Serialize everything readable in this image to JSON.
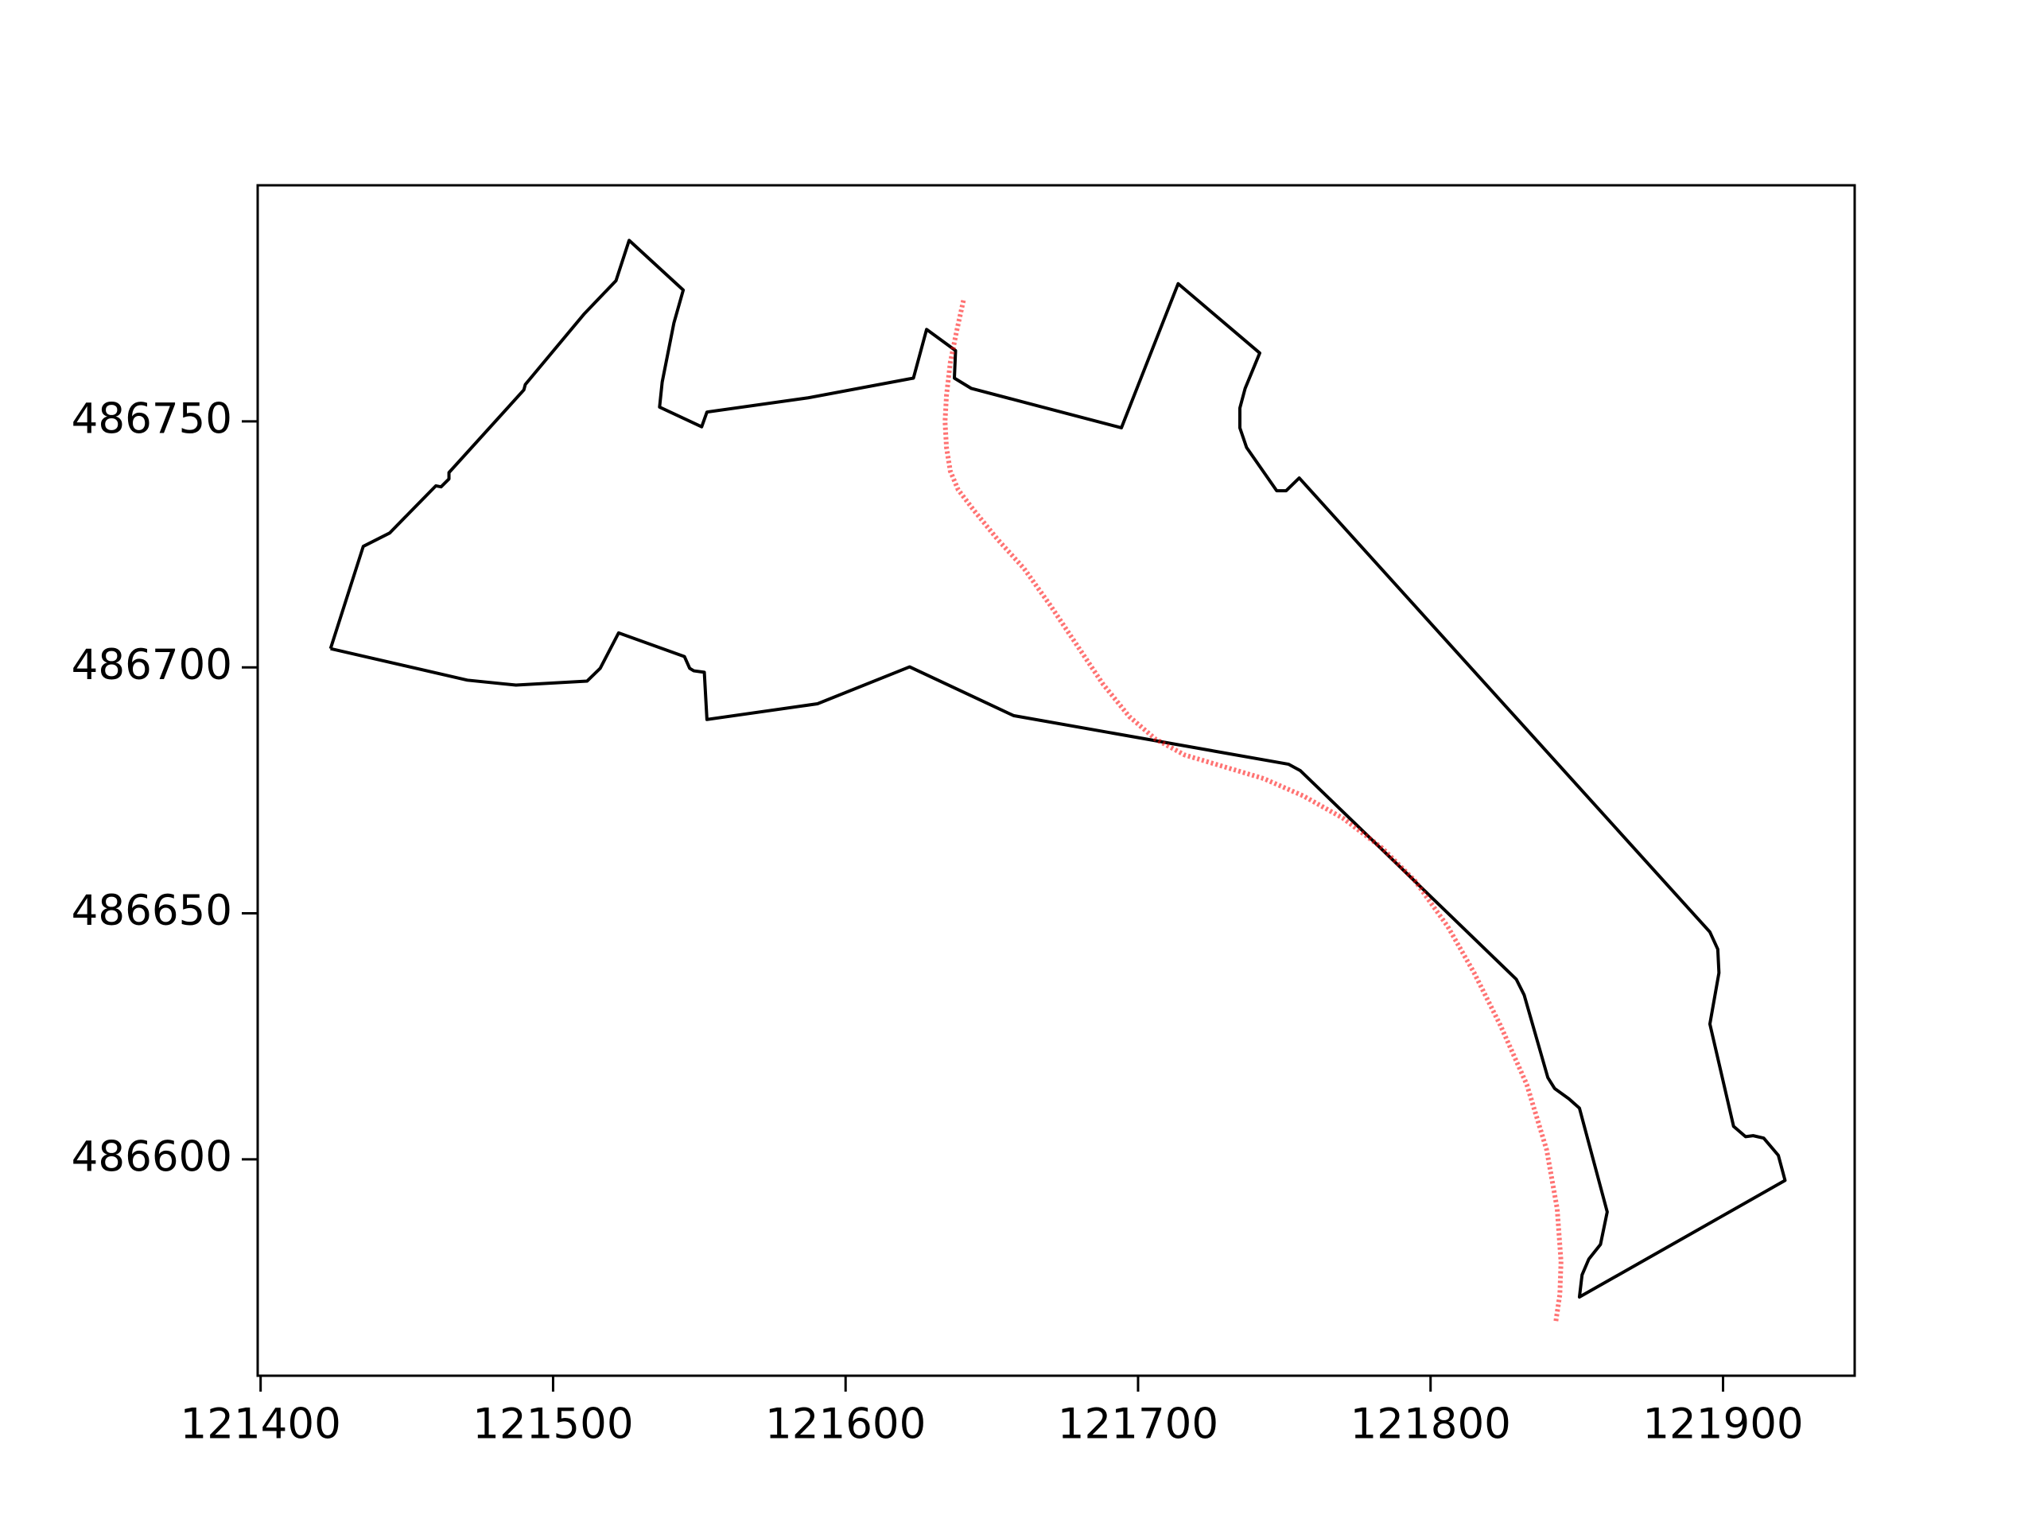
{
  "chart_data": {
    "type": "line",
    "series": [
      {
        "color": "#000000",
        "x": [
          121423.9,
          121435.1,
          121444.1,
          121459.9,
          121461.7,
          121464.4,
          121464.4,
          121490.0,
          121490.5,
          121510.7,
          121521.5,
          121526.0,
          121544.5,
          121541.3,
          121537.3,
          121536.4,
          121550.8,
          121552.6,
          121587.2,
          121623.2,
          121627.7,
          121637.6,
          121637.2,
          121643.0,
          121694.3,
          121713.7,
          121741.6,
          121736.6,
          121734.8,
          121734.8,
          121737.1,
          121747.4,
          121750.6,
          121755.1,
          121895.5,
          121898.2,
          121898.6,
          121895.5,
          121903.6,
          121907.7,
          121910.3,
          121913.9,
          121918.9,
          121921.2,
          121850.9,
          121851.8,
          121854.1,
          121858.1,
          121860.4,
          121850.9,
          121847.3,
          121842.4,
          121840.1,
          121832.0,
          121829.3,
          121755.5,
          121751.5,
          121657.4,
          121621.9,
          121590.4,
          121552.6,
          121551.7,
          121548.1,
          121546.7,
          121544.9,
          121522.4,
          121516.1,
          121511.6,
          121487.3,
          121470.7,
          121423.9
        ],
        "values": [
          486703.8,
          486724.6,
          486727.3,
          486736.9,
          486736.7,
          486738.3,
          486739.6,
          486756.4,
          486757.5,
          486771.9,
          486778.6,
          486786.8,
          486776.7,
          486770.0,
          486758.0,
          486752.9,
          486748.9,
          486751.9,
          486754.8,
          486758.8,
          486768.7,
          486764.4,
          486758.8,
          486756.7,
          486748.7,
          486778.0,
          486763.9,
          486756.7,
          486752.7,
          486748.7,
          486744.7,
          486735.9,
          486735.9,
          486738.5,
          486646.2,
          486642.7,
          486637.9,
          486627.5,
          486606.7,
          486604.6,
          486604.8,
          486604.3,
          486600.8,
          486595.7,
          486572.0,
          486576.5,
          486579.7,
          486582.7,
          486589.3,
          486610.4,
          486612.3,
          486614.4,
          486616.6,
          486633.4,
          486636.6,
          486679.0,
          486680.3,
          486690.2,
          486700.1,
          486692.6,
          486689.4,
          486699.0,
          486699.3,
          486699.8,
          486702.2,
          486707.0,
          486699.8,
          486697.2,
          486696.4,
          486697.4,
          486703.8
        ]
      },
      {
        "color": "#ff0000",
        "x": [
          121640.3,
          121638.1,
          121635.8,
          121634.5,
          121634.0,
          121634.5,
          121635.8,
          121638.5,
          121643.9,
          121652.0,
          121661.0,
          121670.0,
          121679.0,
          121688.0,
          121697.0,
          121706.0,
          121715.9,
          121729.4,
          121742.9,
          121756.4,
          121769.9,
          121783.4,
          121794.7,
          121805.9,
          121814.9,
          121823.9,
          121832.9,
          121839.7,
          121843.3,
          121844.6,
          121844.2,
          121842.8
        ],
        "values": [
          486774.6,
          486768.7,
          486762.0,
          486755.3,
          486750.0,
          486744.7,
          486739.9,
          486736.1,
          486731.9,
          486726.0,
          486720.1,
          486712.6,
          486704.6,
          486696.6,
          486690.0,
          486685.4,
          486682.2,
          486679.8,
          486677.4,
          486673.9,
          486669.4,
          486663.3,
          486656.6,
          486647.3,
          486637.9,
          486627.2,
          486615.2,
          486601.9,
          486589.9,
          486579.2,
          486572.5,
          486566.9
        ]
      }
    ],
    "xlim": [
      121399,
      121945
    ],
    "ylim": [
      486556,
      486798
    ],
    "xticks": [
      121400,
      121500,
      121600,
      121700,
      121800,
      121900
    ],
    "yticks": [
      486600,
      486650,
      486700,
      486750
    ]
  }
}
